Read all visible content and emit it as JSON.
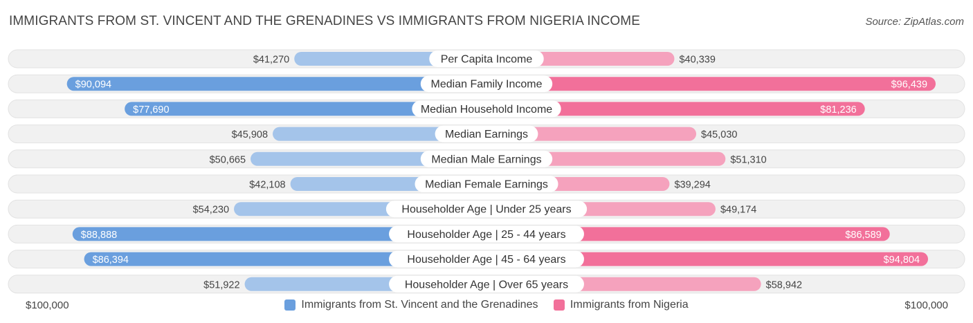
{
  "title": "IMMIGRANTS FROM ST. VINCENT AND THE GRENADINES VS IMMIGRANTS FROM NIGERIA INCOME",
  "source": "Source: ZipAtlas.com",
  "colors": {
    "left_strong": "#6a9fde",
    "left_light": "#a4c4ea",
    "right_strong": "#f2709a",
    "right_light": "#f5a2bd",
    "row_bg": "#f1f1f1"
  },
  "legend": {
    "left_label": "Immigrants from St. Vincent and the Grenadines",
    "right_label": "Immigrants from Nigeria"
  },
  "axis": {
    "left_label": "$100,000",
    "right_label": "$100,000"
  },
  "chart_data": {
    "type": "bar",
    "orientation": "horizontal-diverging",
    "title": "IMMIGRANTS FROM ST. VINCENT AND THE GRENADINES VS IMMIGRANTS FROM NIGERIA INCOME",
    "xlim": [
      0,
      100000
    ],
    "categories": [
      "Per Capita Income",
      "Median Family Income",
      "Median Household Income",
      "Median Earnings",
      "Median Male Earnings",
      "Median Female Earnings",
      "Householder Age | Under 25 years",
      "Householder Age | 25 - 44 years",
      "Householder Age | 45 - 64 years",
      "Householder Age | Over 65 years"
    ],
    "series": [
      {
        "name": "Immigrants from St. Vincent and the Grenadines",
        "side": "left",
        "values": [
          41270,
          90094,
          77690,
          45908,
          50665,
          42108,
          54230,
          88888,
          86394,
          51922
        ],
        "labels": [
          "$41,270",
          "$90,094",
          "$77,690",
          "$45,908",
          "$50,665",
          "$42,108",
          "$54,230",
          "$88,888",
          "$86,394",
          "$51,922"
        ]
      },
      {
        "name": "Immigrants from Nigeria",
        "side": "right",
        "values": [
          40339,
          96439,
          81236,
          45030,
          51310,
          39294,
          49174,
          86589,
          94804,
          58942
        ],
        "labels": [
          "$40,339",
          "$96,439",
          "$81,236",
          "$45,030",
          "$51,310",
          "$39,294",
          "$49,174",
          "$86,589",
          "$94,804",
          "$58,942"
        ]
      }
    ]
  }
}
